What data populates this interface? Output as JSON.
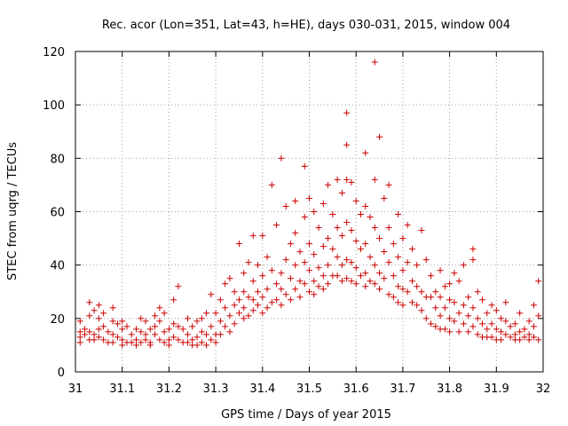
{
  "chart_data": {
    "type": "scatter",
    "title": "Rec. acor (Lon=351, Lat=43, h=HE), days 030-031, 2015, window 004",
    "xlabel": "GPS time / Days of year 2015",
    "ylabel": "STEC from uqrg / TECUs",
    "xlim": [
      31,
      32
    ],
    "ylim": [
      0,
      120
    ],
    "xticks": [
      31,
      31.1,
      31.2,
      31.3,
      31.4,
      31.5,
      31.6,
      31.7,
      31.8,
      31.9,
      32
    ],
    "xtick_labels": [
      "31",
      "31.1",
      "31.2",
      "31.3",
      "31.4",
      "31.5",
      "31.6",
      "31.7",
      "31.8",
      "31.9",
      "32"
    ],
    "yticks": [
      0,
      20,
      40,
      60,
      80,
      100,
      120
    ],
    "ytick_labels": [
      "0",
      "20",
      "40",
      "60",
      "80",
      "100",
      "120"
    ],
    "grid": true,
    "marker": "+",
    "color": "#cc0000",
    "series": [
      {
        "name": "STEC",
        "points": [
          [
            31.01,
            19
          ],
          [
            31.01,
            15
          ],
          [
            31.01,
            13
          ],
          [
            31.01,
            11
          ],
          [
            31.02,
            16
          ],
          [
            31.02,
            14
          ],
          [
            31.03,
            26
          ],
          [
            31.03,
            21
          ],
          [
            31.03,
            15
          ],
          [
            31.03,
            12
          ],
          [
            31.04,
            23
          ],
          [
            31.04,
            14
          ],
          [
            31.04,
            12
          ],
          [
            31.05,
            25
          ],
          [
            31.05,
            20
          ],
          [
            31.05,
            16
          ],
          [
            31.05,
            13
          ],
          [
            31.06,
            22
          ],
          [
            31.06,
            17
          ],
          [
            31.06,
            12
          ],
          [
            31.07,
            15
          ],
          [
            31.07,
            11
          ],
          [
            31.08,
            24
          ],
          [
            31.08,
            19
          ],
          [
            31.08,
            14
          ],
          [
            31.08,
            11
          ],
          [
            31.09,
            18
          ],
          [
            31.09,
            13
          ],
          [
            31.1,
            19
          ],
          [
            31.1,
            16
          ],
          [
            31.1,
            12
          ],
          [
            31.1,
            10
          ],
          [
            31.11,
            17
          ],
          [
            31.11,
            11
          ],
          [
            31.12,
            14
          ],
          [
            31.12,
            11
          ],
          [
            31.13,
            16
          ],
          [
            31.13,
            12
          ],
          [
            31.13,
            10
          ],
          [
            31.14,
            20
          ],
          [
            31.14,
            15
          ],
          [
            31.14,
            11
          ],
          [
            31.15,
            19
          ],
          [
            31.15,
            14
          ],
          [
            31.15,
            12
          ],
          [
            31.16,
            16
          ],
          [
            31.16,
            11
          ],
          [
            31.16,
            10
          ],
          [
            31.17,
            21
          ],
          [
            31.17,
            17
          ],
          [
            31.17,
            14
          ],
          [
            31.18,
            24
          ],
          [
            31.18,
            19
          ],
          [
            31.18,
            12
          ],
          [
            31.19,
            22
          ],
          [
            31.19,
            15
          ],
          [
            31.19,
            11
          ],
          [
            31.2,
            16
          ],
          [
            31.2,
            12
          ],
          [
            31.2,
            10
          ],
          [
            31.21,
            27
          ],
          [
            31.21,
            18
          ],
          [
            31.21,
            13
          ],
          [
            31.22,
            32
          ],
          [
            31.22,
            17
          ],
          [
            31.22,
            12
          ],
          [
            31.23,
            16
          ],
          [
            31.23,
            11
          ],
          [
            31.24,
            20
          ],
          [
            31.24,
            14
          ],
          [
            31.24,
            11
          ],
          [
            31.25,
            17
          ],
          [
            31.25,
            12
          ],
          [
            31.25,
            10
          ],
          [
            31.26,
            19
          ],
          [
            31.26,
            13
          ],
          [
            31.26,
            10
          ],
          [
            31.27,
            20
          ],
          [
            31.27,
            15
          ],
          [
            31.27,
            11
          ],
          [
            31.28,
            22
          ],
          [
            31.28,
            14
          ],
          [
            31.28,
            10
          ],
          [
            31.29,
            29
          ],
          [
            31.29,
            17
          ],
          [
            31.29,
            12
          ],
          [
            31.3,
            22
          ],
          [
            31.3,
            14
          ],
          [
            31.3,
            11
          ],
          [
            31.31,
            27
          ],
          [
            31.31,
            19
          ],
          [
            31.31,
            14
          ],
          [
            31.32,
            33
          ],
          [
            31.32,
            24
          ],
          [
            31.32,
            17
          ],
          [
            31.33,
            35
          ],
          [
            31.33,
            21
          ],
          [
            31.33,
            15
          ],
          [
            31.34,
            30
          ],
          [
            31.34,
            25
          ],
          [
            31.34,
            18
          ],
          [
            31.35,
            48
          ],
          [
            31.35,
            27
          ],
          [
            31.35,
            22
          ],
          [
            31.36,
            37
          ],
          [
            31.36,
            30
          ],
          [
            31.36,
            24
          ],
          [
            31.36,
            20
          ],
          [
            31.37,
            41
          ],
          [
            31.37,
            28
          ],
          [
            31.37,
            21
          ],
          [
            31.38,
            51
          ],
          [
            31.38,
            34
          ],
          [
            31.38,
            27
          ],
          [
            31.38,
            23
          ],
          [
            31.39,
            40
          ],
          [
            31.39,
            30
          ],
          [
            31.39,
            25
          ],
          [
            31.4,
            51
          ],
          [
            31.4,
            36
          ],
          [
            31.4,
            28
          ],
          [
            31.4,
            22
          ],
          [
            31.41,
            43
          ],
          [
            31.41,
            31
          ],
          [
            31.41,
            24
          ],
          [
            31.42,
            70
          ],
          [
            31.42,
            38
          ],
          [
            31.42,
            26
          ],
          [
            31.43,
            55
          ],
          [
            31.43,
            33
          ],
          [
            31.43,
            27
          ],
          [
            31.44,
            80
          ],
          [
            31.44,
            37
          ],
          [
            31.44,
            31
          ],
          [
            31.44,
            25
          ],
          [
            31.45,
            62
          ],
          [
            31.45,
            42
          ],
          [
            31.45,
            29
          ],
          [
            31.46,
            48
          ],
          [
            31.46,
            35
          ],
          [
            31.46,
            27
          ],
          [
            31.47,
            64
          ],
          [
            31.47,
            52
          ],
          [
            31.47,
            40
          ],
          [
            31.47,
            31
          ],
          [
            31.48,
            45
          ],
          [
            31.48,
            34
          ],
          [
            31.48,
            28
          ],
          [
            31.49,
            77
          ],
          [
            31.49,
            58
          ],
          [
            31.49,
            41
          ],
          [
            31.49,
            33
          ],
          [
            31.5,
            65
          ],
          [
            31.5,
            48
          ],
          [
            31.5,
            38
          ],
          [
            31.5,
            30
          ],
          [
            31.51,
            60
          ],
          [
            31.51,
            44
          ],
          [
            31.51,
            34
          ],
          [
            31.51,
            29
          ],
          [
            31.52,
            54
          ],
          [
            31.52,
            39
          ],
          [
            31.52,
            32
          ],
          [
            31.53,
            63
          ],
          [
            31.53,
            47
          ],
          [
            31.53,
            36
          ],
          [
            31.53,
            31
          ],
          [
            31.54,
            70
          ],
          [
            31.54,
            50
          ],
          [
            31.54,
            40
          ],
          [
            31.54,
            33
          ],
          [
            31.55,
            59
          ],
          [
            31.55,
            46
          ],
          [
            31.55,
            36
          ],
          [
            31.56,
            72
          ],
          [
            31.56,
            54
          ],
          [
            31.56,
            43
          ],
          [
            31.56,
            36
          ],
          [
            31.57,
            67
          ],
          [
            31.57,
            51
          ],
          [
            31.57,
            40
          ],
          [
            31.57,
            34
          ],
          [
            31.58,
            97
          ],
          [
            31.58,
            85
          ],
          [
            31.58,
            72
          ],
          [
            31.58,
            56
          ],
          [
            31.58,
            42
          ],
          [
            31.58,
            35
          ],
          [
            31.59,
            71
          ],
          [
            31.59,
            53
          ],
          [
            31.59,
            41
          ],
          [
            31.59,
            34
          ],
          [
            31.6,
            64
          ],
          [
            31.6,
            49
          ],
          [
            31.6,
            39
          ],
          [
            31.6,
            33
          ],
          [
            31.61,
            59
          ],
          [
            31.61,
            46
          ],
          [
            31.61,
            36
          ],
          [
            31.62,
            82
          ],
          [
            31.62,
            62
          ],
          [
            31.62,
            48
          ],
          [
            31.62,
            37
          ],
          [
            31.62,
            32
          ],
          [
            31.63,
            58
          ],
          [
            31.63,
            43
          ],
          [
            31.63,
            34
          ],
          [
            31.64,
            116
          ],
          [
            31.64,
            72
          ],
          [
            31.64,
            54
          ],
          [
            31.64,
            40
          ],
          [
            31.64,
            33
          ],
          [
            31.65,
            88
          ],
          [
            31.65,
            50
          ],
          [
            31.65,
            37
          ],
          [
            31.65,
            31
          ],
          [
            31.66,
            65
          ],
          [
            31.66,
            45
          ],
          [
            31.66,
            35
          ],
          [
            31.67,
            70
          ],
          [
            31.67,
            54
          ],
          [
            31.67,
            41
          ],
          [
            31.67,
            29
          ],
          [
            31.68,
            48
          ],
          [
            31.68,
            36
          ],
          [
            31.68,
            28
          ],
          [
            31.69,
            59
          ],
          [
            31.69,
            43
          ],
          [
            31.69,
            32
          ],
          [
            31.69,
            26
          ],
          [
            31.7,
            50
          ],
          [
            31.7,
            38
          ],
          [
            31.7,
            31
          ],
          [
            31.7,
            25
          ],
          [
            31.71,
            55
          ],
          [
            31.71,
            41
          ],
          [
            31.71,
            30
          ],
          [
            31.72,
            46
          ],
          [
            31.72,
            34
          ],
          [
            31.72,
            26
          ],
          [
            31.73,
            40
          ],
          [
            31.73,
            32
          ],
          [
            31.73,
            25
          ],
          [
            31.74,
            53
          ],
          [
            31.74,
            30
          ],
          [
            31.74,
            23
          ],
          [
            31.75,
            42
          ],
          [
            31.75,
            28
          ],
          [
            31.75,
            20
          ],
          [
            31.76,
            36
          ],
          [
            31.76,
            28
          ],
          [
            31.76,
            18
          ],
          [
            31.77,
            30
          ],
          [
            31.77,
            24
          ],
          [
            31.77,
            17
          ],
          [
            31.78,
            38
          ],
          [
            31.78,
            28
          ],
          [
            31.78,
            21
          ],
          [
            31.78,
            16
          ],
          [
            31.79,
            32
          ],
          [
            31.79,
            24
          ],
          [
            31.79,
            16
          ],
          [
            31.8,
            33
          ],
          [
            31.8,
            27
          ],
          [
            31.8,
            20
          ],
          [
            31.8,
            15
          ],
          [
            31.81,
            37
          ],
          [
            31.81,
            26
          ],
          [
            31.81,
            19
          ],
          [
            31.82,
            34
          ],
          [
            31.82,
            22
          ],
          [
            31.82,
            15
          ],
          [
            31.83,
            40
          ],
          [
            31.83,
            25
          ],
          [
            31.83,
            18
          ],
          [
            31.84,
            28
          ],
          [
            31.84,
            21
          ],
          [
            31.84,
            15
          ],
          [
            31.85,
            46
          ],
          [
            31.85,
            42
          ],
          [
            31.85,
            24
          ],
          [
            31.85,
            17
          ],
          [
            31.86,
            30
          ],
          [
            31.86,
            20
          ],
          [
            31.86,
            14
          ],
          [
            31.87,
            27
          ],
          [
            31.87,
            18
          ],
          [
            31.87,
            13
          ],
          [
            31.88,
            22
          ],
          [
            31.88,
            16
          ],
          [
            31.88,
            13
          ],
          [
            31.89,
            25
          ],
          [
            31.89,
            18
          ],
          [
            31.89,
            13
          ],
          [
            31.9,
            23
          ],
          [
            31.9,
            16
          ],
          [
            31.9,
            12
          ],
          [
            31.91,
            20
          ],
          [
            31.91,
            15
          ],
          [
            31.91,
            12
          ],
          [
            31.92,
            26
          ],
          [
            31.92,
            19
          ],
          [
            31.92,
            14
          ],
          [
            31.93,
            17
          ],
          [
            31.93,
            13
          ],
          [
            31.94,
            18
          ],
          [
            31.94,
            14
          ],
          [
            31.94,
            12
          ],
          [
            31.95,
            22
          ],
          [
            31.95,
            15
          ],
          [
            31.95,
            12
          ],
          [
            31.96,
            16
          ],
          [
            31.96,
            13
          ],
          [
            31.97,
            19
          ],
          [
            31.97,
            14
          ],
          [
            31.97,
            12
          ],
          [
            31.98,
            25
          ],
          [
            31.98,
            17
          ],
          [
            31.98,
            13
          ],
          [
            31.99,
            34
          ],
          [
            31.99,
            21
          ],
          [
            31.99,
            12
          ]
        ]
      }
    ]
  }
}
